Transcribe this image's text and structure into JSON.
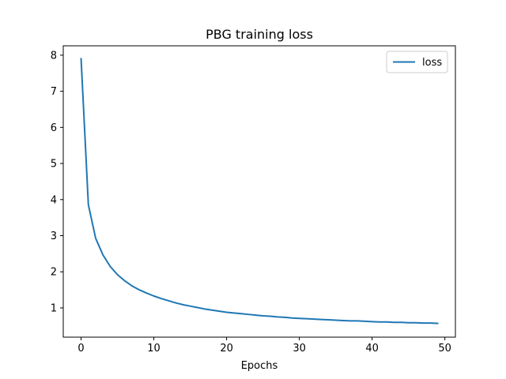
{
  "chart_data": {
    "type": "line",
    "title": "PBG training loss",
    "xlabel": "Epochs",
    "ylabel": "",
    "xlim": [
      -2.45,
      51.45
    ],
    "ylim": [
      0.19,
      8.26
    ],
    "xticks": [
      0,
      10,
      20,
      30,
      40,
      50
    ],
    "yticks": [
      1,
      2,
      3,
      4,
      5,
      6,
      7,
      8
    ],
    "grid": false,
    "legend_position": "top-right",
    "series": [
      {
        "name": "loss",
        "color": "#1f77b4",
        "x": [
          0,
          1,
          2,
          3,
          4,
          5,
          6,
          7,
          8,
          9,
          10,
          11,
          12,
          13,
          14,
          15,
          16,
          17,
          18,
          19,
          20,
          21,
          22,
          23,
          24,
          25,
          26,
          27,
          28,
          29,
          30,
          31,
          32,
          33,
          34,
          35,
          36,
          37,
          38,
          39,
          40,
          41,
          42,
          43,
          44,
          45,
          46,
          47,
          48,
          49
        ],
        "y": [
          7.9,
          3.86,
          2.93,
          2.47,
          2.15,
          1.92,
          1.75,
          1.61,
          1.5,
          1.41,
          1.33,
          1.26,
          1.2,
          1.14,
          1.09,
          1.05,
          1.01,
          0.97,
          0.94,
          0.91,
          0.88,
          0.86,
          0.84,
          0.82,
          0.8,
          0.78,
          0.77,
          0.75,
          0.74,
          0.72,
          0.71,
          0.7,
          0.69,
          0.68,
          0.67,
          0.66,
          0.65,
          0.64,
          0.64,
          0.63,
          0.62,
          0.61,
          0.61,
          0.6,
          0.6,
          0.59,
          0.59,
          0.58,
          0.58,
          0.57
        ]
      }
    ]
  }
}
